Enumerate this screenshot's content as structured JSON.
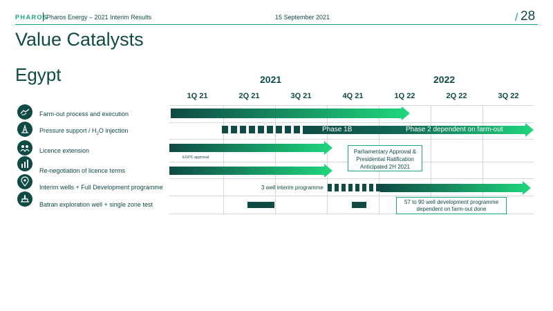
{
  "header": {
    "logo": "PHAROS",
    "subtitle": "Pharos Energy – 2021 Interim Results",
    "date": "15 September 2021",
    "page_slash": "/",
    "page_number": "28"
  },
  "title": "Value Catalysts",
  "region": "Egypt",
  "timeline": {
    "years": [
      "2021",
      "2022"
    ],
    "quarters": [
      "1Q 21",
      "2Q 21",
      "3Q 21",
      "4Q 21",
      "1Q 22",
      "2Q 22",
      "3Q 22"
    ]
  },
  "rows": [
    {
      "icon": "handshake-icon",
      "label": "Farm-out process and execution"
    },
    {
      "icon": "oil-rig-icon",
      "label_pre": "Pressure support / H",
      "label_sub": "2",
      "label_post": "O injection"
    },
    {
      "icon": "people-icon",
      "label": "Licence extension"
    },
    {
      "icon": "bar-chart-icon",
      "label": "Re-negotiation of licence terms"
    },
    {
      "icon": "location-pin-icon",
      "label": "Interim wells + Full Development programme"
    },
    {
      "icon": "drilling-rig-icon",
      "label": "Batran exploration well + single zone test"
    }
  ],
  "annotations": {
    "phase1b": "Phase 1B",
    "phase2": "Phase 2 dependent on farm-out",
    "egpc": "EGPC approval",
    "parliamentary_1": "Parliamentary Approval &",
    "parliamentary_2": "Presidential Ratification",
    "parliamentary_3": "Anticipated 2H 2021",
    "interim": "3 well interim programme",
    "dev_1": "57 to 90 well development programme",
    "dev_2": "dependent on farm-out done"
  },
  "colors": {
    "dark_green": "#0f4a44",
    "bright_green": "#1fd77e",
    "accent": "#1aa77e"
  }
}
